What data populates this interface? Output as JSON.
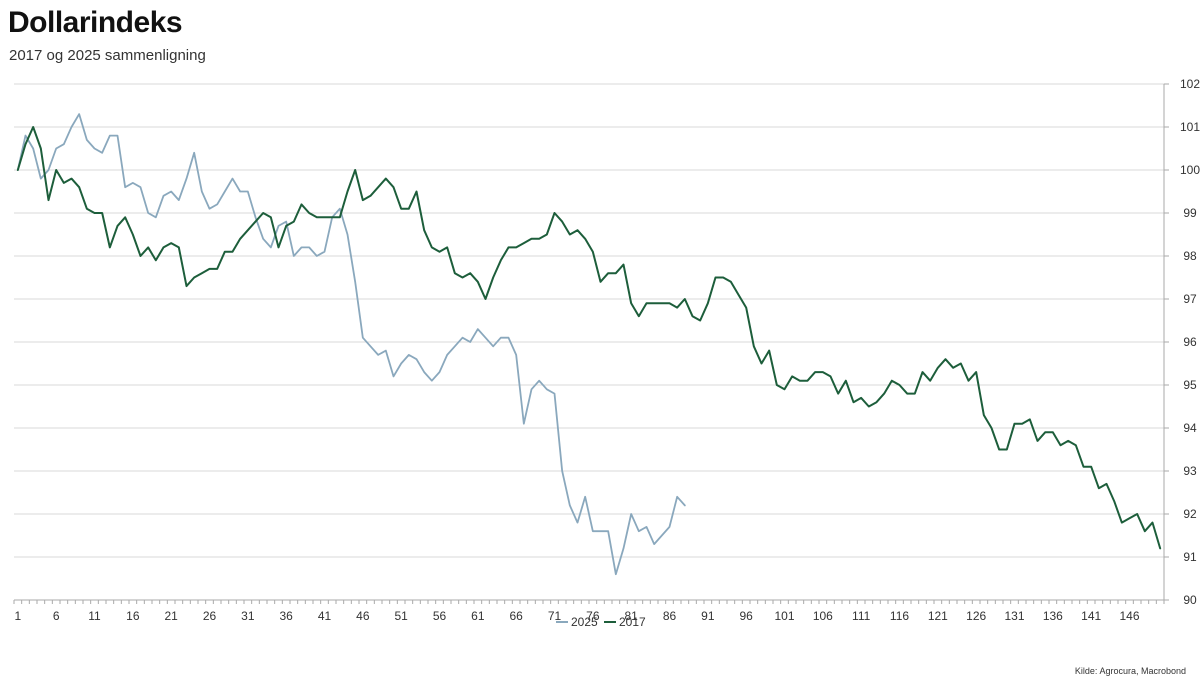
{
  "title": "Dollarindeks",
  "subtitle": "2017 og 2025 sammenligning",
  "source": "Kilde: Agrocura, Macrobond",
  "colors": {
    "s2025": "#8aa8bd",
    "s2017": "#1d5e3b",
    "grid": "#d9d9d9",
    "axis": "#aaaaaa"
  },
  "chart_data": {
    "type": "line",
    "title": "Dollarindeks",
    "subtitle": "2017 og 2025 sammenligning",
    "xlabel": "",
    "ylabel": "",
    "xlim": [
      1,
      150
    ],
    "ylim": [
      90,
      102
    ],
    "x_ticks": [
      "1",
      "6",
      "11",
      "16",
      "21",
      "26",
      "31",
      "36",
      "41",
      "46",
      "51",
      "56",
      "61",
      "66",
      "71",
      "76",
      "81",
      "86",
      "91",
      "96",
      "101",
      "106",
      "111",
      "116",
      "121",
      "126",
      "131",
      "136",
      "141",
      "146"
    ],
    "y_ticks": [
      "90",
      "91",
      "92",
      "93",
      "94",
      "95",
      "96",
      "97",
      "98",
      "99",
      "100",
      "101",
      "102"
    ],
    "grid": true,
    "y_axis_side": "right",
    "legend": "bottom-center",
    "series": [
      {
        "name": "2025",
        "x_start": 1,
        "values": [
          100.0,
          100.8,
          100.5,
          99.8,
          100.0,
          100.5,
          100.6,
          101.0,
          101.3,
          100.7,
          100.5,
          100.4,
          100.8,
          100.8,
          99.6,
          99.7,
          99.6,
          99.0,
          98.9,
          99.4,
          99.5,
          99.3,
          99.8,
          100.4,
          99.5,
          99.1,
          99.2,
          99.5,
          99.8,
          99.5,
          99.5,
          98.9,
          98.4,
          98.2,
          98.7,
          98.8,
          98.0,
          98.2,
          98.2,
          98.0,
          98.1,
          98.9,
          99.1,
          98.5,
          97.4,
          96.1,
          95.9,
          95.7,
          95.8,
          95.2,
          95.5,
          95.7,
          95.6,
          95.3,
          95.1,
          95.3,
          95.7,
          95.9,
          96.1,
          96.0,
          96.3,
          96.1,
          95.9,
          96.1,
          96.1,
          95.7,
          94.1,
          94.9,
          95.1,
          94.9,
          94.8,
          93.0,
          92.2,
          91.8,
          92.4,
          91.6,
          91.6,
          91.6,
          90.6,
          91.2,
          92.0,
          91.6,
          91.7,
          91.3,
          91.5,
          91.7,
          92.4,
          92.2
        ]
      },
      {
        "name": "2017",
        "x_start": 1,
        "values": [
          100.0,
          100.6,
          101.0,
          100.5,
          99.3,
          100.0,
          99.7,
          99.8,
          99.6,
          99.1,
          99.0,
          99.0,
          98.2,
          98.7,
          98.9,
          98.5,
          98.0,
          98.2,
          97.9,
          98.2,
          98.3,
          98.2,
          97.3,
          97.5,
          97.6,
          97.7,
          97.7,
          98.1,
          98.1,
          98.4,
          98.6,
          98.8,
          99.0,
          98.9,
          98.2,
          98.7,
          98.8,
          99.2,
          99.0,
          98.9,
          98.9,
          98.9,
          98.9,
          99.5,
          100.0,
          99.3,
          99.4,
          99.6,
          99.8,
          99.6,
          99.1,
          99.1,
          99.5,
          98.6,
          98.2,
          98.1,
          98.2,
          97.6,
          97.5,
          97.6,
          97.4,
          97.0,
          97.5,
          97.9,
          98.2,
          98.2,
          98.3,
          98.4,
          98.4,
          98.5,
          99.0,
          98.8,
          98.5,
          98.6,
          98.4,
          98.1,
          97.4,
          97.6,
          97.6,
          97.8,
          96.9,
          96.6,
          96.9,
          96.9,
          96.9,
          96.9,
          96.8,
          97.0,
          96.6,
          96.5,
          96.9,
          97.5,
          97.5,
          97.4,
          97.1,
          96.8,
          95.9,
          95.5,
          95.8,
          95.0,
          94.9,
          95.2,
          95.1,
          95.1,
          95.3,
          95.3,
          95.2,
          94.8,
          95.1,
          94.6,
          94.7,
          94.5,
          94.6,
          94.8,
          95.1,
          95.0,
          94.8,
          94.8,
          95.3,
          95.1,
          95.4,
          95.6,
          95.4,
          95.5,
          95.1,
          95.3,
          94.3,
          94.0,
          93.5,
          93.5,
          94.1,
          94.1,
          94.2,
          93.7,
          93.9,
          93.9,
          93.6,
          93.7,
          93.6,
          93.1,
          93.1,
          92.6,
          92.7,
          92.3,
          91.8,
          91.9,
          92.0,
          91.6,
          91.8,
          91.2
        ]
      }
    ]
  }
}
